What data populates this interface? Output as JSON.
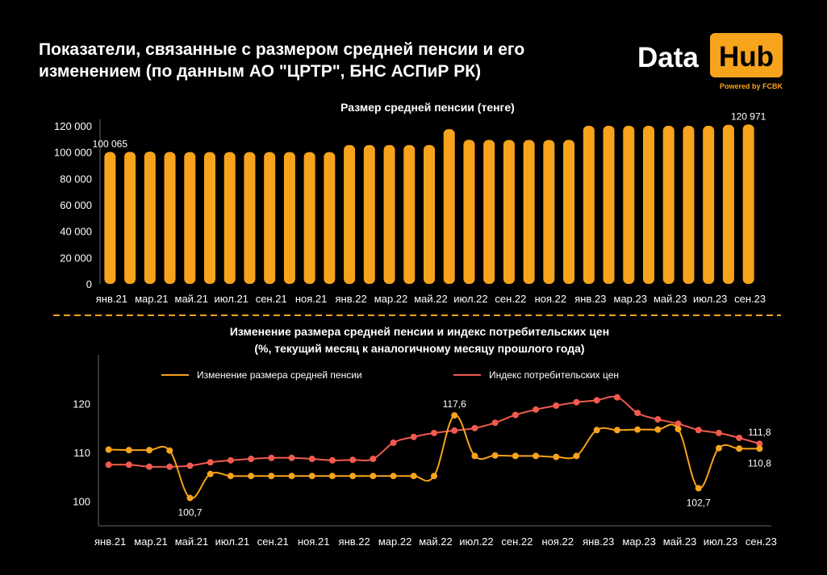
{
  "header": {
    "title": "Показатели, связанные с размером средней пенсии и его изменением (по данным АО \"ЦРТР\", БНС АСПиР РК)"
  },
  "logo": {
    "word": "Data",
    "box_word": "Hub",
    "powered": "Powered by FCBK",
    "accent_color": "#f7a31c"
  },
  "chart_data": [
    {
      "type": "bar",
      "title": "Размер средней пенсии (тенге)",
      "xlabel": "",
      "ylabel": "",
      "ylim": [
        0,
        120000
      ],
      "yticks": [
        0,
        20000,
        40000,
        60000,
        80000,
        100000,
        120000
      ],
      "ytick_labels": [
        "0",
        "20 000",
        "40 000",
        "60 000",
        "80 000",
        "100 000",
        "120 000"
      ],
      "categories": [
        "янв.21",
        "фев.21",
        "мар.21",
        "апр.21",
        "май.21",
        "июн.21",
        "июл.21",
        "авг.21",
        "сен.21",
        "окт.21",
        "ноя.21",
        "дек.21",
        "янв.22",
        "фев.22",
        "мар.22",
        "апр.22",
        "май.22",
        "июн.22",
        "июл.22",
        "авг.22",
        "сен.22",
        "окт.22",
        "ноя.22",
        "дек.22",
        "янв.23",
        "фев.23",
        "мар.23",
        "апр.23",
        "май.23",
        "июн.23",
        "июл.23",
        "авг.23",
        "сен.23"
      ],
      "xtick_labels": [
        "янв.21",
        "мар.21",
        "май.21",
        "июл.21",
        "сен.21",
        "ноя.21",
        "янв.22",
        "мар.22",
        "май.22",
        "июл.22",
        "сен.22",
        "ноя.22",
        "янв.23",
        "мар.23",
        "май.23",
        "июл.23",
        "сен.23"
      ],
      "values": [
        100065,
        100200,
        100300,
        100100,
        100000,
        100000,
        100000,
        100000,
        100000,
        100000,
        100000,
        100000,
        105400,
        105400,
        105400,
        105400,
        105400,
        117500,
        109400,
        109300,
        109200,
        109200,
        109200,
        109300,
        120000,
        120000,
        120000,
        120000,
        120000,
        120000,
        120000,
        120800,
        120971
      ],
      "data_labels": [
        {
          "index": 0,
          "text": "100 065"
        },
        {
          "index": 32,
          "text": "120 971"
        }
      ],
      "bar_color": "#f7a31c",
      "grid": false,
      "legend": "none"
    },
    {
      "type": "line",
      "title": "Изменение размера средней пенсии и индекс потребительских цен (%, текущий месяц к аналогичному месяцу прошлого года)",
      "title_lines": [
        "Изменение размера средней пенсии и индекс потребительских цен",
        "(%, текущий месяц к аналогичному месяцу прошлого года)"
      ],
      "xlabel": "",
      "ylabel": "",
      "ylim": [
        95,
        130
      ],
      "yticks": [
        100,
        110,
        120
      ],
      "ytick_labels": [
        "100",
        "110",
        "120"
      ],
      "categories": [
        "янв.21",
        "фев.21",
        "мар.21",
        "апр.21",
        "май.21",
        "июн.21",
        "июл.21",
        "авг.21",
        "сен.21",
        "окт.21",
        "ноя.21",
        "дек.21",
        "янв.22",
        "фев.22",
        "мар.22",
        "апр.22",
        "май.22",
        "июн.22",
        "июл.22",
        "авг.22",
        "сен.22",
        "окт.22",
        "ноя.22",
        "дек.22",
        "янв.23",
        "фев.23",
        "мар.23",
        "апр.23",
        "май.23",
        "июн.23",
        "июл.23",
        "авг.23",
        "сен.23"
      ],
      "xtick_labels": [
        "янв.21",
        "мар.21",
        "май.21",
        "июл.21",
        "сен.21",
        "ноя.21",
        "янв.22",
        "мар.22",
        "май.22",
        "июл.22",
        "сен.22",
        "ноя.22",
        "янв.23",
        "мар.23",
        "май.23",
        "июл.23",
        "сен.23"
      ],
      "series": [
        {
          "name": "Изменение размера средней пенсии",
          "color": "#f7a31c",
          "values": [
            110.6,
            110.5,
            110.5,
            110.4,
            100.7,
            105.6,
            105.2,
            105.2,
            105.2,
            105.2,
            105.2,
            105.2,
            105.2,
            105.2,
            105.2,
            105.2,
            105.2,
            117.6,
            109.3,
            109.4,
            109.3,
            109.3,
            109.1,
            109.3,
            114.6,
            114.6,
            114.7,
            114.7,
            114.8,
            102.7,
            110.9,
            110.8,
            110.8
          ],
          "data_labels": [
            {
              "index": 4,
              "text": "100,7",
              "position": "below"
            },
            {
              "index": 17,
              "text": "117,6",
              "position": "above"
            },
            {
              "index": 29,
              "text": "102,7",
              "position": "below"
            },
            {
              "index": 32,
              "text": "110,8",
              "position": "below"
            }
          ]
        },
        {
          "name": "Индекс потребительских цен",
          "color": "#f25a4f",
          "values": [
            107.5,
            107.5,
            107.1,
            107.1,
            107.3,
            108.0,
            108.4,
            108.7,
            108.9,
            108.9,
            108.7,
            108.4,
            108.5,
            108.7,
            112.0,
            113.2,
            114.0,
            114.5,
            115.0,
            116.1,
            117.7,
            118.8,
            119.6,
            120.3,
            120.7,
            121.3,
            118.1,
            116.8,
            115.9,
            114.6,
            114.0,
            113.0,
            111.8
          ],
          "data_labels": [
            {
              "index": 32,
              "text": "111,8",
              "position": "above"
            }
          ]
        }
      ],
      "grid": false,
      "legend": "top"
    }
  ]
}
